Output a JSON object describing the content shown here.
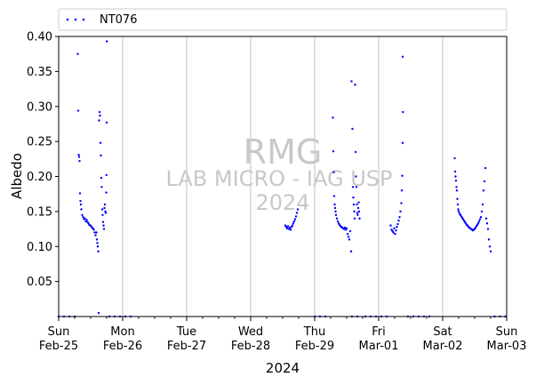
{
  "chart_data": {
    "type": "scatter",
    "ylabel": "Albedo",
    "xlabel": "2024",
    "ylim": [
      0.0,
      0.4
    ],
    "xlim": [
      "2024-02-25",
      "2024-03-03"
    ],
    "yticks": [
      "0.05",
      "0.10",
      "0.15",
      "0.20",
      "0.25",
      "0.30",
      "0.35",
      "0.40"
    ],
    "xticks": [
      {
        "date": "2024-02-25",
        "day": "Sun",
        "label": "Feb-25"
      },
      {
        "date": "2024-02-26",
        "day": "Mon",
        "label": "Feb-26"
      },
      {
        "date": "2024-02-27",
        "day": "Tue",
        "label": "Feb-27"
      },
      {
        "date": "2024-02-28",
        "day": "Wed",
        "label": "Feb-28"
      },
      {
        "date": "2024-02-29",
        "day": "Thu",
        "label": "Feb-29"
      },
      {
        "date": "2024-03-01",
        "day": "Fri",
        "label": "Mar-01"
      },
      {
        "date": "2024-03-02",
        "day": "Sat",
        "label": "Mar-02"
      },
      {
        "date": "2024-03-03",
        "day": "Sun",
        "label": "Mar-03"
      }
    ],
    "grid": "vertical",
    "legend_position": "top",
    "series": [
      {
        "name": "NT076",
        "color": "#0000ff",
        "marker": "dot",
        "points": [
          [
            "2024-02-25 00:00",
            0.0
          ],
          [
            "2024-02-25 02:00",
            0.0
          ],
          [
            "2024-02-25 04:00",
            0.0
          ],
          [
            "2024-02-25 06:00",
            0.0
          ],
          [
            "2024-02-25 07:10",
            0.375
          ],
          [
            "2024-02-25 07:20",
            0.294
          ],
          [
            "2024-02-25 07:30",
            0.231
          ],
          [
            "2024-02-25 07:40",
            0.228
          ],
          [
            "2024-02-25 07:50",
            0.222
          ],
          [
            "2024-02-25 08:00",
            0.176
          ],
          [
            "2024-02-25 08:10",
            0.165
          ],
          [
            "2024-02-25 08:20",
            0.16
          ],
          [
            "2024-02-25 08:30",
            0.153
          ],
          [
            "2024-02-25 08:50",
            0.145
          ],
          [
            "2024-02-25 09:10",
            0.142
          ],
          [
            "2024-02-25 09:30",
            0.139
          ],
          [
            "2024-02-25 09:50",
            0.14
          ],
          [
            "2024-02-25 10:10",
            0.136
          ],
          [
            "2024-02-25 10:30",
            0.138
          ],
          [
            "2024-02-25 10:50",
            0.135
          ],
          [
            "2024-02-25 11:10",
            0.133
          ],
          [
            "2024-02-25 11:30",
            0.131
          ],
          [
            "2024-02-25 11:50",
            0.13
          ],
          [
            "2024-02-25 12:10",
            0.129
          ],
          [
            "2024-02-25 12:30",
            0.127
          ],
          [
            "2024-02-25 12:50",
            0.126
          ],
          [
            "2024-02-25 13:10",
            0.124
          ],
          [
            "2024-02-25 13:30",
            0.12
          ],
          [
            "2024-02-25 13:50",
            0.116
          ],
          [
            "2024-02-25 14:10",
            0.12
          ],
          [
            "2024-02-25 14:20",
            0.11
          ],
          [
            "2024-02-25 14:30",
            0.105
          ],
          [
            "2024-02-25 14:40",
            0.1
          ],
          [
            "2024-02-25 14:50",
            0.093
          ],
          [
            "2024-02-25 15:00",
            0.005
          ],
          [
            "2024-02-25 15:10",
            0.28
          ],
          [
            "2024-02-25 15:20",
            0.292
          ],
          [
            "2024-02-25 15:30",
            0.287
          ],
          [
            "2024-02-25 15:40",
            0.248
          ],
          [
            "2024-02-25 15:50",
            0.23
          ],
          [
            "2024-02-25 16:00",
            0.198
          ],
          [
            "2024-02-25 16:10",
            0.185
          ],
          [
            "2024-02-25 16:20",
            0.153
          ],
          [
            "2024-02-25 16:30",
            0.145
          ],
          [
            "2024-02-25 16:40",
            0.135
          ],
          [
            "2024-02-25 16:50",
            0.13
          ],
          [
            "2024-02-25 17:00",
            0.125
          ],
          [
            "2024-02-25 17:10",
            0.155
          ],
          [
            "2024-02-25 17:20",
            0.16
          ],
          [
            "2024-02-25 17:30",
            0.15
          ],
          [
            "2024-02-25 17:40",
            0.148
          ],
          [
            "2024-02-25 17:50",
            0.177
          ],
          [
            "2024-02-25 17:55",
            0.202
          ],
          [
            "2024-02-25 18:00",
            0.277
          ],
          [
            "2024-02-25 18:05",
            0.393
          ],
          [
            "2024-02-25 19:00",
            0.0
          ],
          [
            "2024-02-25 21:00",
            0.0
          ],
          [
            "2024-02-25 23:00",
            0.0
          ],
          [
            "2024-02-26 01:00",
            0.0
          ],
          [
            "2024-02-26 03:00",
            0.0
          ],
          [
            "2024-02-29 14:00",
            0.0
          ],
          [
            "2024-02-29 16:00",
            0.0
          ],
          [
            "2024-02-28 13:00",
            0.13
          ],
          [
            "2024-02-28 13:20",
            0.128
          ],
          [
            "2024-02-28 13:40",
            0.126
          ],
          [
            "2024-02-28 14:00",
            0.129
          ],
          [
            "2024-02-28 14:20",
            0.125
          ],
          [
            "2024-02-28 14:40",
            0.127
          ],
          [
            "2024-02-28 15:00",
            0.124
          ],
          [
            "2024-02-28 15:20",
            0.128
          ],
          [
            "2024-02-28 15:40",
            0.13
          ],
          [
            "2024-02-28 16:00",
            0.133
          ],
          [
            "2024-02-28 16:20",
            0.136
          ],
          [
            "2024-02-28 16:40",
            0.139
          ],
          [
            "2024-02-28 17:00",
            0.143
          ],
          [
            "2024-02-28 17:20",
            0.148
          ],
          [
            "2024-02-28 17:40",
            0.153
          ],
          [
            "2024-02-29 00:00",
            0.0
          ],
          [
            "2024-02-29 02:00",
            0.0
          ],
          [
            "2024-02-29 04:00",
            0.0
          ],
          [
            "2024-02-29 06:50",
            0.284
          ],
          [
            "2024-02-29 07:00",
            0.236
          ],
          [
            "2024-02-29 07:10",
            0.206
          ],
          [
            "2024-02-29 07:20",
            0.172
          ],
          [
            "2024-02-29 07:30",
            0.16
          ],
          [
            "2024-02-29 07:40",
            0.155
          ],
          [
            "2024-02-29 07:50",
            0.15
          ],
          [
            "2024-02-29 08:00",
            0.145
          ],
          [
            "2024-02-29 08:20",
            0.14
          ],
          [
            "2024-02-29 08:40",
            0.136
          ],
          [
            "2024-02-29 09:00",
            0.133
          ],
          [
            "2024-02-29 09:20",
            0.131
          ],
          [
            "2024-02-29 09:40",
            0.129
          ],
          [
            "2024-02-29 10:00",
            0.128
          ],
          [
            "2024-02-29 10:20",
            0.127
          ],
          [
            "2024-02-29 10:40",
            0.126
          ],
          [
            "2024-02-29 11:00",
            0.125
          ],
          [
            "2024-02-29 11:20",
            0.127
          ],
          [
            "2024-02-29 11:40",
            0.124
          ],
          [
            "2024-02-29 12:00",
            0.126
          ],
          [
            "2024-02-29 12:20",
            0.118
          ],
          [
            "2024-02-29 12:40",
            0.114
          ],
          [
            "2024-02-29 13:00",
            0.11
          ],
          [
            "2024-02-29 13:20",
            0.122
          ],
          [
            "2024-02-29 13:40",
            0.093
          ],
          [
            "2024-02-29 13:50",
            0.336
          ],
          [
            "2024-02-29 14:10",
            0.268
          ],
          [
            "2024-02-29 14:20",
            0.185
          ],
          [
            "2024-02-29 14:30",
            0.17
          ],
          [
            "2024-02-29 14:40",
            0.16
          ],
          [
            "2024-02-29 14:50",
            0.15
          ],
          [
            "2024-02-29 15:00",
            0.14
          ],
          [
            "2024-02-29 15:10",
            0.331
          ],
          [
            "2024-02-29 15:20",
            0.235
          ],
          [
            "2024-02-29 15:30",
            0.2
          ],
          [
            "2024-02-29 15:40",
            0.185
          ],
          [
            "2024-02-29 15:50",
            0.16
          ],
          [
            "2024-02-29 16:00",
            0.148
          ],
          [
            "2024-02-29 16:10",
            0.145
          ],
          [
            "2024-02-29 16:20",
            0.155
          ],
          [
            "2024-02-29 16:30",
            0.163
          ],
          [
            "2024-02-29 16:40",
            0.15
          ],
          [
            "2024-02-29 16:50",
            0.14
          ],
          [
            "2024-02-29 19:00",
            0.0
          ],
          [
            "2024-02-29 21:00",
            0.0
          ],
          [
            "2024-02-29 23:00",
            0.0
          ],
          [
            "2024-03-01 01:00",
            0.0
          ],
          [
            "2024-03-01 03:00",
            0.0
          ],
          [
            "2024-03-01 04:30",
            0.13
          ],
          [
            "2024-03-01 04:50",
            0.124
          ],
          [
            "2024-03-01 05:10",
            0.122
          ],
          [
            "2024-03-01 05:30",
            0.12
          ],
          [
            "2024-03-01 05:50",
            0.126
          ],
          [
            "2024-03-01 06:10",
            0.118
          ],
          [
            "2024-03-01 06:30",
            0.123
          ],
          [
            "2024-03-01 06:50",
            0.128
          ],
          [
            "2024-03-01 07:10",
            0.132
          ],
          [
            "2024-03-01 07:30",
            0.137
          ],
          [
            "2024-03-01 07:50",
            0.142
          ],
          [
            "2024-03-01 08:10",
            0.15
          ],
          [
            "2024-03-01 08:30",
            0.162
          ],
          [
            "2024-03-01 08:40",
            0.18
          ],
          [
            "2024-03-01 08:50",
            0.201
          ],
          [
            "2024-03-01 09:00",
            0.248
          ],
          [
            "2024-03-01 09:05",
            0.292
          ],
          [
            "2024-03-01 09:00",
            0.371
          ],
          [
            "2024-03-01 11:00",
            0.0
          ],
          [
            "2024-03-01 13:00",
            0.0
          ],
          [
            "2024-03-01 15:00",
            0.0
          ],
          [
            "2024-03-01 17:00",
            0.0
          ],
          [
            "2024-03-01 19:00",
            0.0
          ],
          [
            "2024-03-02 04:30",
            0.226
          ],
          [
            "2024-03-02 04:40",
            0.207
          ],
          [
            "2024-03-02 04:50",
            0.2
          ],
          [
            "2024-03-02 05:00",
            0.194
          ],
          [
            "2024-03-02 05:10",
            0.185
          ],
          [
            "2024-03-02 05:20",
            0.18
          ],
          [
            "2024-03-02 05:30",
            0.168
          ],
          [
            "2024-03-02 05:40",
            0.16
          ],
          [
            "2024-03-02 05:50",
            0.153
          ],
          [
            "2024-03-02 06:00",
            0.15
          ],
          [
            "2024-03-02 06:20",
            0.147
          ],
          [
            "2024-03-02 06:40",
            0.145
          ],
          [
            "2024-03-02 07:00",
            0.143
          ],
          [
            "2024-03-02 07:20",
            0.141
          ],
          [
            "2024-03-02 07:40",
            0.139
          ],
          [
            "2024-03-02 08:00",
            0.137
          ],
          [
            "2024-03-02 08:20",
            0.135
          ],
          [
            "2024-03-02 08:40",
            0.133
          ],
          [
            "2024-03-02 09:00",
            0.131
          ],
          [
            "2024-03-02 09:20",
            0.13
          ],
          [
            "2024-03-02 09:40",
            0.128
          ],
          [
            "2024-03-02 10:00",
            0.127
          ],
          [
            "2024-03-02 10:20",
            0.126
          ],
          [
            "2024-03-02 10:40",
            0.125
          ],
          [
            "2024-03-02 11:00",
            0.124
          ],
          [
            "2024-03-02 11:20",
            0.123
          ],
          [
            "2024-03-02 11:40",
            0.124
          ],
          [
            "2024-03-02 12:00",
            0.125
          ],
          [
            "2024-03-02 12:20",
            0.127
          ],
          [
            "2024-03-02 12:40",
            0.129
          ],
          [
            "2024-03-02 13:00",
            0.131
          ],
          [
            "2024-03-02 13:20",
            0.133
          ],
          [
            "2024-03-02 13:40",
            0.136
          ],
          [
            "2024-03-02 14:00",
            0.139
          ],
          [
            "2024-03-02 14:20",
            0.142
          ],
          [
            "2024-03-02 14:40",
            0.15
          ],
          [
            "2024-03-02 15:00",
            0.16
          ],
          [
            "2024-03-02 15:20",
            0.18
          ],
          [
            "2024-03-02 15:40",
            0.193
          ],
          [
            "2024-03-02 16:00",
            0.212
          ],
          [
            "2024-03-02 16:20",
            0.14
          ],
          [
            "2024-03-02 16:40",
            0.133
          ],
          [
            "2024-03-02 17:00",
            0.125
          ],
          [
            "2024-03-02 17:20",
            0.11
          ],
          [
            "2024-03-02 17:40",
            0.1
          ],
          [
            "2024-03-02 18:00",
            0.093
          ],
          [
            "2024-03-02 19:30",
            0.0
          ],
          [
            "2024-03-02 21:30",
            0.0
          ],
          [
            "2024-03-02 23:30",
            0.0
          ]
        ]
      }
    ],
    "watermark": [
      "RMG",
      "LAB MICRO - IAG USP",
      "2024"
    ]
  }
}
